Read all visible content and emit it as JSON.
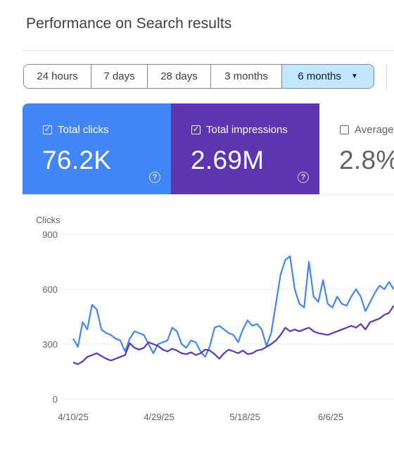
{
  "page_title": "Performance on Search results",
  "date_ranges": [
    {
      "label": "24 hours",
      "selected": false
    },
    {
      "label": "7 days",
      "selected": false
    },
    {
      "label": "28 days",
      "selected": false
    },
    {
      "label": "3 months",
      "selected": false
    },
    {
      "label": "6 months",
      "selected": true
    }
  ],
  "metrics": [
    {
      "label": "Total clicks",
      "value": "76.2K",
      "checked": true,
      "color": "#4285f4"
    },
    {
      "label": "Total impressions",
      "value": "2.69M",
      "checked": true,
      "color": "#5e35b1"
    },
    {
      "label": "Average",
      "value": "2.8%",
      "checked": false
    }
  ],
  "chart_data": {
    "type": "line",
    "ylabel": "Clicks",
    "ylim": [
      0,
      900
    ],
    "yticks": [
      0,
      300,
      600,
      900
    ],
    "xticks": [
      "4/10/25",
      "4/29/25",
      "5/18/25",
      "6/6/25"
    ],
    "grid": true,
    "series": [
      {
        "color": "#4285f4",
        "values": [
          330,
          285,
          420,
          380,
          515,
          490,
          380,
          360,
          350,
          330,
          320,
          260,
          330,
          370,
          360,
          350,
          300,
          250,
          300,
          310,
          320,
          390,
          370,
          300,
          280,
          320,
          310,
          260,
          230,
          290,
          390,
          400,
          380,
          360,
          350,
          310,
          380,
          430,
          400,
          410,
          380,
          290,
          360,
          520,
          680,
          760,
          780,
          600,
          520,
          500,
          750,
          560,
          530,
          650,
          520,
          500,
          560,
          520,
          510,
          560,
          600,
          560,
          480,
          530,
          580,
          620,
          600,
          640,
          600
        ]
      },
      {
        "color": "#5e35b1",
        "values": [
          200,
          190,
          205,
          230,
          240,
          250,
          235,
          220,
          210,
          220,
          230,
          240,
          305,
          280,
          270,
          280,
          310,
          300,
          290,
          270,
          260,
          275,
          265,
          250,
          245,
          255,
          240,
          250,
          270,
          265,
          245,
          220,
          250,
          270,
          260,
          250,
          265,
          245,
          250,
          265,
          270,
          285,
          300,
          320,
          350,
          390,
          370,
          380,
          370,
          380,
          390,
          370,
          360,
          355,
          350,
          360,
          370,
          380,
          390,
          400,
          390,
          410,
          380,
          420,
          430,
          440,
          460,
          470,
          510
        ]
      }
    ]
  }
}
